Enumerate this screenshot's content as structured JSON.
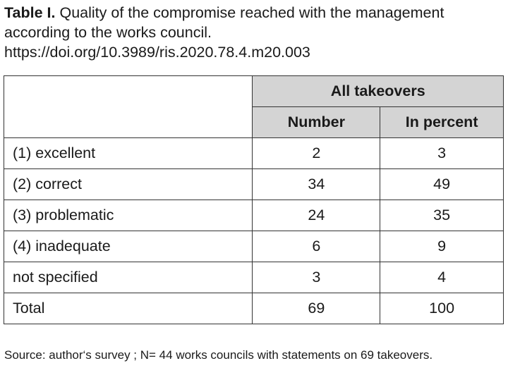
{
  "caption": {
    "label": "Table I.",
    "title": "Quality of the compromise reached with the management according to the works council.",
    "doi": "https://doi.org/10.3989/ris.2020.78.4.m20.003"
  },
  "table": {
    "group_header": "All takeovers",
    "columns": [
      "Number",
      "In percent"
    ],
    "rows": [
      {
        "label": "(1) excellent",
        "number": "2",
        "percent": "3"
      },
      {
        "label": "(2) correct",
        "number": "34",
        "percent": "49"
      },
      {
        "label": "(3) problematic",
        "number": "24",
        "percent": "35"
      },
      {
        "label": "(4) inadequate",
        "number": "6",
        "percent": "9"
      },
      {
        "label": "not specified",
        "number": "3",
        "percent": "4"
      },
      {
        "label": "Total",
        "number": "69",
        "percent": "100"
      }
    ]
  },
  "source": "Source: author‘s survey ; N= 44 works councils with statements on 69 takeovers."
}
